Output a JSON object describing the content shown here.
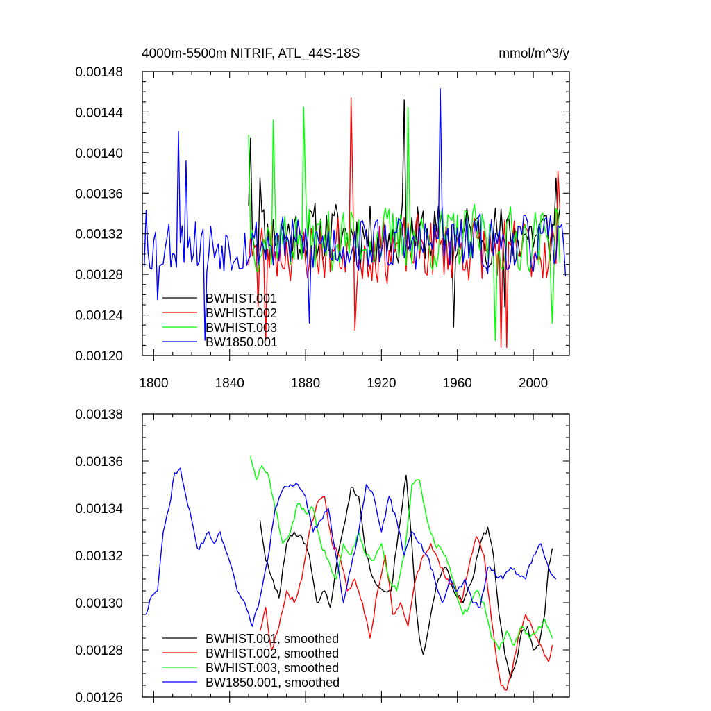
{
  "chart_data": [
    {
      "type": "line",
      "title": "4000m-5500m NITRIF, ATL_44S-18S",
      "units": "mmol/m^3/y",
      "xlim": [
        1794,
        2019
      ],
      "ylim": [
        0.0012,
        0.00148
      ],
      "x_ticks": [
        1800,
        1840,
        1880,
        1920,
        1960,
        2000
      ],
      "x_tick_labels": [
        "1800",
        "1840",
        "1880",
        "1920",
        "1960",
        "2000"
      ],
      "y_ticks": [
        0.0012,
        0.00124,
        0.00128,
        0.00132,
        0.00136,
        0.0014,
        0.00144,
        0.00148
      ],
      "y_tick_labels": [
        "0.00120",
        "0.00124",
        "0.00128",
        "0.00132",
        "0.00136",
        "0.00140",
        "0.00144",
        "0.00148"
      ],
      "legend_position": "bottom-left",
      "series": [
        {
          "name": "BWHIST.001",
          "color": "#000000",
          "start": 1850,
          "end": 2014,
          "base": 0.00132,
          "amp": 3.5e-05,
          "seed": 11,
          "anchors": [
            [
              1850,
              0.001348
            ],
            [
              1851,
              0.001414
            ],
            [
              1856,
              0.001375
            ],
            [
              1932,
              0.001452
            ],
            [
              1958,
              0.001228
            ],
            [
              1985,
              0.001248
            ],
            [
              2012,
              0.001375
            ],
            [
              2014,
              0.001345
            ]
          ]
        },
        {
          "name": "BWHIST.002",
          "color": "#ff0000",
          "start": 1850,
          "end": 2014,
          "base": 0.001305,
          "amp": 3.7e-05,
          "seed": 23,
          "anchors": [
            [
              1851,
              0.001318
            ],
            [
              1855,
              0.001248
            ],
            [
              1859,
              0.001215
            ],
            [
              1904,
              0.001454
            ],
            [
              1906,
              0.001225
            ],
            [
              1983,
              0.001208
            ],
            [
              1986,
              0.001208
            ],
            [
              2013,
              0.001382
            ],
            [
              2014,
              0.001345
            ]
          ]
        },
        {
          "name": "BWHIST.003",
          "color": "#00ff00",
          "start": 1850,
          "end": 2014,
          "base": 0.001315,
          "amp": 3.6e-05,
          "seed": 37,
          "anchors": [
            [
              1850,
              0.001418
            ],
            [
              1863,
              0.001432
            ],
            [
              1879,
              0.001445
            ],
            [
              1934,
              0.001445
            ],
            [
              1980,
              0.001215
            ],
            [
              2010,
              0.001232
            ],
            [
              2012,
              0.001345
            ]
          ]
        },
        {
          "name": "BW1850.001",
          "color": "#0000ff",
          "start": 1795,
          "end": 2017,
          "base": 0.00131,
          "amp": 3.2e-05,
          "seed": 53,
          "anchors": [
            [
              1795,
              0.001288
            ],
            [
              1796,
              0.001343
            ],
            [
              1802,
              0.001255
            ],
            [
              1813,
              0.001421
            ],
            [
              1817,
              0.001392
            ],
            [
              1827,
              0.001215
            ],
            [
              1951,
              0.001463
            ],
            [
              1882,
              0.001232
            ],
            [
              2017,
              0.001278
            ]
          ]
        }
      ]
    },
    {
      "type": "line",
      "title": "",
      "xlim": [
        1794,
        2019
      ],
      "ylim": [
        0.00126,
        0.00138
      ],
      "x_ticks": [
        1800,
        1840,
        1880,
        1920,
        1960,
        2000
      ],
      "y_ticks": [
        0.00126,
        0.00128,
        0.0013,
        0.00132,
        0.00134,
        0.00136,
        0.00138
      ],
      "y_tick_labels": [
        "0.00126",
        "0.00128",
        "0.00130",
        "0.00132",
        "0.00134",
        "0.00136",
        "0.00138"
      ],
      "legend_position": "bottom-left",
      "series": [
        {
          "name": "BWHIST.001, smoothed",
          "color": "#000000",
          "jitter": 1.2e-06,
          "seed": 101,
          "x": [
            1856,
            1859,
            1862,
            1866,
            1870,
            1874,
            1878,
            1882,
            1886,
            1890,
            1893,
            1897,
            1901,
            1904,
            1908,
            1912,
            1916,
            1921,
            1925,
            1929,
            1933,
            1936,
            1938,
            1940,
            1942,
            1946,
            1950,
            1954,
            1958,
            1963,
            1968,
            1972,
            1976,
            1979,
            1982,
            1985,
            1988,
            1991,
            1994,
            1997,
            2000,
            2003,
            2006,
            2008,
            2010
          ],
          "values": [
            0.001335,
            0.001318,
            0.001311,
            0.001302,
            0.001325,
            0.00133,
            0.001328,
            0.00132,
            0.0013,
            0.001305,
            0.001298,
            0.00132,
            0.001335,
            0.001349,
            0.001345,
            0.00132,
            0.00131,
            0.001305,
            0.001305,
            0.00133,
            0.001354,
            0.001325,
            0.0013,
            0.001285,
            0.001278,
            0.001295,
            0.00131,
            0.001315,
            0.001305,
            0.0013,
            0.00131,
            0.001325,
            0.001332,
            0.00132,
            0.001295,
            0.001278,
            0.001268,
            0.001275,
            0.001288,
            0.00129,
            0.00128,
            0.001282,
            0.001295,
            0.001315,
            0.001323
          ]
        },
        {
          "name": "BWHIST.002, smoothed",
          "color": "#ff0000",
          "jitter": 1.2e-06,
          "seed": 202,
          "x": [
            1856,
            1859,
            1862,
            1866,
            1870,
            1874,
            1878,
            1882,
            1886,
            1890,
            1894,
            1898,
            1902,
            1906,
            1910,
            1914,
            1918,
            1922,
            1926,
            1930,
            1934,
            1938,
            1942,
            1946,
            1950,
            1954,
            1958,
            1962,
            1966,
            1970,
            1974,
            1977,
            1980,
            1983,
            1986,
            1989,
            1992,
            1996,
            2000,
            2004,
            2008,
            2010
          ],
          "values": [
            0.001288,
            0.001298,
            0.00128,
            0.00129,
            0.001305,
            0.0013,
            0.00131,
            0.00133,
            0.001342,
            0.001345,
            0.001325,
            0.00132,
            0.001305,
            0.00131,
            0.0013,
            0.001285,
            0.001305,
            0.00132,
            0.001295,
            0.0013,
            0.00129,
            0.00131,
            0.00132,
            0.001325,
            0.001318,
            0.00131,
            0.001308,
            0.0013,
            0.001315,
            0.001328,
            0.00132,
            0.0013,
            0.00128,
            0.001265,
            0.001263,
            0.001272,
            0.001285,
            0.001295,
            0.001288,
            0.001282,
            0.001275,
            0.001282
          ]
        },
        {
          "name": "BWHIST.003, smoothed",
          "color": "#00ff00",
          "jitter": 1.2e-06,
          "seed": 303,
          "x": [
            1851,
            1854,
            1857,
            1860,
            1864,
            1868,
            1872,
            1876,
            1880,
            1884,
            1888,
            1892,
            1896,
            1900,
            1904,
            1908,
            1912,
            1916,
            1920,
            1924,
            1928,
            1932,
            1936,
            1940,
            1944,
            1948,
            1952,
            1956,
            1960,
            1963,
            1966,
            1970,
            1974,
            1978,
            1982,
            1986,
            1990,
            1994,
            1998,
            2002,
            2006,
            2010
          ],
          "values": [
            0.001362,
            0.001352,
            0.001358,
            0.001355,
            0.00134,
            0.001325,
            0.00133,
            0.001342,
            0.001338,
            0.00134,
            0.001325,
            0.001318,
            0.00131,
            0.001325,
            0.00132,
            0.00133,
            0.00132,
            0.001318,
            0.001325,
            0.00131,
            0.001305,
            0.00132,
            0.00135,
            0.001352,
            0.001335,
            0.001325,
            0.001322,
            0.001315,
            0.001302,
            0.001295,
            0.001298,
            0.001305,
            0.0013,
            0.001285,
            0.00128,
            0.001288,
            0.001282,
            0.00129,
            0.001285,
            0.001288,
            0.001293,
            0.001285
          ]
        },
        {
          "name": "BW1850.001, smoothed",
          "color": "#0000ff",
          "jitter": 1.2e-06,
          "seed": 404,
          "x": [
            1796,
            1799,
            1802,
            1805,
            1808,
            1811,
            1814,
            1817,
            1820,
            1823,
            1826,
            1829,
            1832,
            1835,
            1838,
            1841,
            1844,
            1848,
            1852,
            1856,
            1860,
            1864,
            1868,
            1872,
            1876,
            1880,
            1884,
            1888,
            1892,
            1896,
            1900,
            1904,
            1908,
            1912,
            1916,
            1920,
            1924,
            1928,
            1932,
            1936,
            1940,
            1944,
            1948,
            1952,
            1956,
            1960,
            1964,
            1968,
            1972,
            1976,
            1980,
            1984,
            1988,
            1992,
            1996,
            2000,
            2004,
            2008,
            2012
          ],
          "values": [
            0.001295,
            0.001303,
            0.001305,
            0.00133,
            0.00134,
            0.001355,
            0.001357,
            0.001345,
            0.001335,
            0.001323,
            0.001325,
            0.00133,
            0.001325,
            0.00133,
            0.001322,
            0.001315,
            0.001305,
            0.0013,
            0.00129,
            0.001302,
            0.001318,
            0.00134,
            0.001348,
            0.00135,
            0.00135,
            0.001345,
            0.00133,
            0.001335,
            0.00134,
            0.00132,
            0.0013,
            0.001315,
            0.00133,
            0.00135,
            0.001345,
            0.00133,
            0.001345,
            0.001335,
            0.00132,
            0.00133,
            0.001325,
            0.00132,
            0.00131,
            0.0013,
            0.00131,
            0.001305,
            0.00131,
            0.0013,
            0.001298,
            0.001315,
            0.001312,
            0.00131,
            0.001315,
            0.001312,
            0.00131,
            0.00132,
            0.001325,
            0.001315,
            0.00131
          ]
        }
      ]
    }
  ]
}
